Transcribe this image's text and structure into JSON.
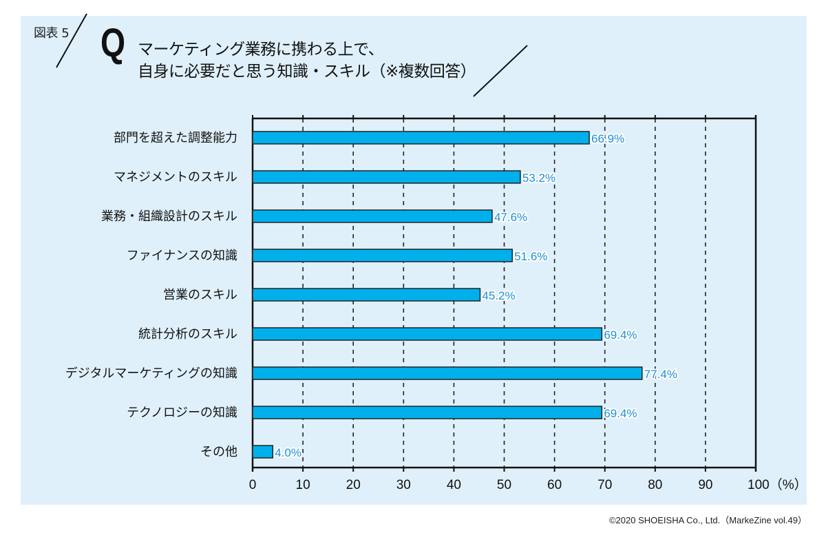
{
  "figure_label": "図表 5",
  "q_mark": "Q",
  "title_lines": [
    "マーケティング業務に携わる上で、",
    "自身に必要だと思う知識・スキル（※複数回答）"
  ],
  "credit": "©2020 SHOEISHA Co., Ltd.（MarkeZine vol.49）",
  "colors": {
    "bar": "#00b0ec",
    "bar_border": "#222222",
    "value_label": "#1a8fd6",
    "panel_bg": "#dff0fa"
  },
  "chart_data": {
    "type": "bar",
    "orientation": "horizontal",
    "title": "マーケティング業務に携わる上で、自身に必要だと思う知識・スキル（※複数回答）",
    "categories": [
      "部門を超えた調整能力",
      "マネジメントのスキル",
      "業務・組織設計のスキル",
      "ファイナンスの知識",
      "営業のスキル",
      "統計分析のスキル",
      "デジタルマーケティングの知識",
      "テクノロジーの知識",
      "その他"
    ],
    "values": [
      66.9,
      53.2,
      47.6,
      51.6,
      45.2,
      69.4,
      77.4,
      69.4,
      4.0
    ],
    "value_labels": [
      "66.9%",
      "53.2%",
      "47.6%",
      "51.6%",
      "45.2%",
      "69.4%",
      "77.4%",
      "69.4%",
      "4.0%"
    ],
    "xlim": [
      0,
      100
    ],
    "xticks": [
      0,
      10,
      20,
      30,
      40,
      50,
      60,
      70,
      80,
      90,
      100
    ],
    "xtick_labels": [
      "0",
      "10",
      "20",
      "30",
      "40",
      "50",
      "60",
      "70",
      "80",
      "90",
      "100（%）"
    ],
    "xlabel": "（%）",
    "ylabel": "",
    "grid": "vertical dashed",
    "legend": "none"
  }
}
